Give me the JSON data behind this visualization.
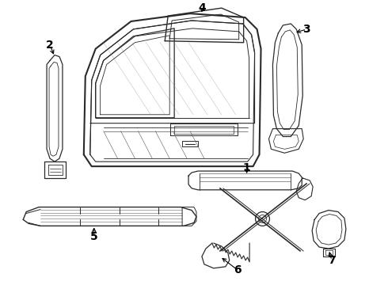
{
  "bg_color": "#ffffff",
  "line_color": "#2a2a2a",
  "label_color": "#000000",
  "label_fontsize": 10
}
